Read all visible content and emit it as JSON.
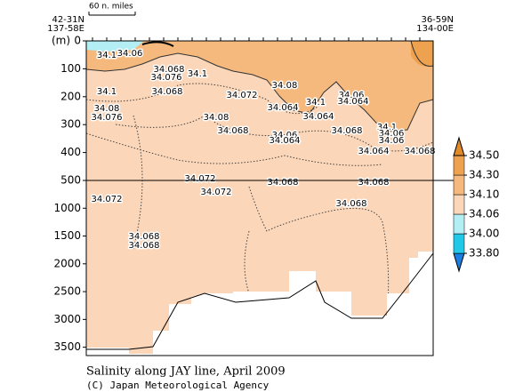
{
  "chart_data": {
    "type": "contour",
    "title": "Salinity along JAY line, April 2009",
    "credit": "(C) Japan Meteorological Agency",
    "ylabel": "(m)",
    "scale_label": "60 n. miles",
    "left_position": [
      "42-31N",
      "137-58E"
    ],
    "right_position": [
      "36-59N",
      "134-00E"
    ],
    "ylim": [
      0,
      3650
    ],
    "y_scale_break": 500,
    "yticks": [
      0,
      100,
      200,
      300,
      400,
      500,
      1000,
      1500,
      2000,
      2500,
      3000,
      3500
    ],
    "levels": [
      33.8,
      34.0,
      34.06,
      34.1,
      34.3,
      34.5
    ],
    "level_labels": [
      "33.80",
      "34.00",
      "34.06",
      "34.10",
      "34.30",
      "34.50"
    ],
    "level_colors": [
      "#1a7fe0",
      "#22c8e8",
      "#b4eef5",
      "#fcd6b8",
      "#f5b97e",
      "#eea250",
      "#e08a2a"
    ],
    "contour_labels": [
      "34.1",
      "34.06",
      "34.068",
      "34.076",
      "34.1",
      "34.1",
      "34.068",
      "34.072",
      "34.08",
      "34.064",
      "34.08",
      "34.076",
      "34.08",
      "34.068",
      "34.1",
      "34.064",
      "34.06",
      "34.064",
      "34.06",
      "34.064",
      "34.068",
      "34.1",
      "34.06",
      "34.06",
      "34.064",
      "34.068",
      "34.072",
      "34.072",
      "34.068",
      "34.068",
      "34.072",
      "34.068",
      "34.068",
      "34.068"
    ]
  }
}
